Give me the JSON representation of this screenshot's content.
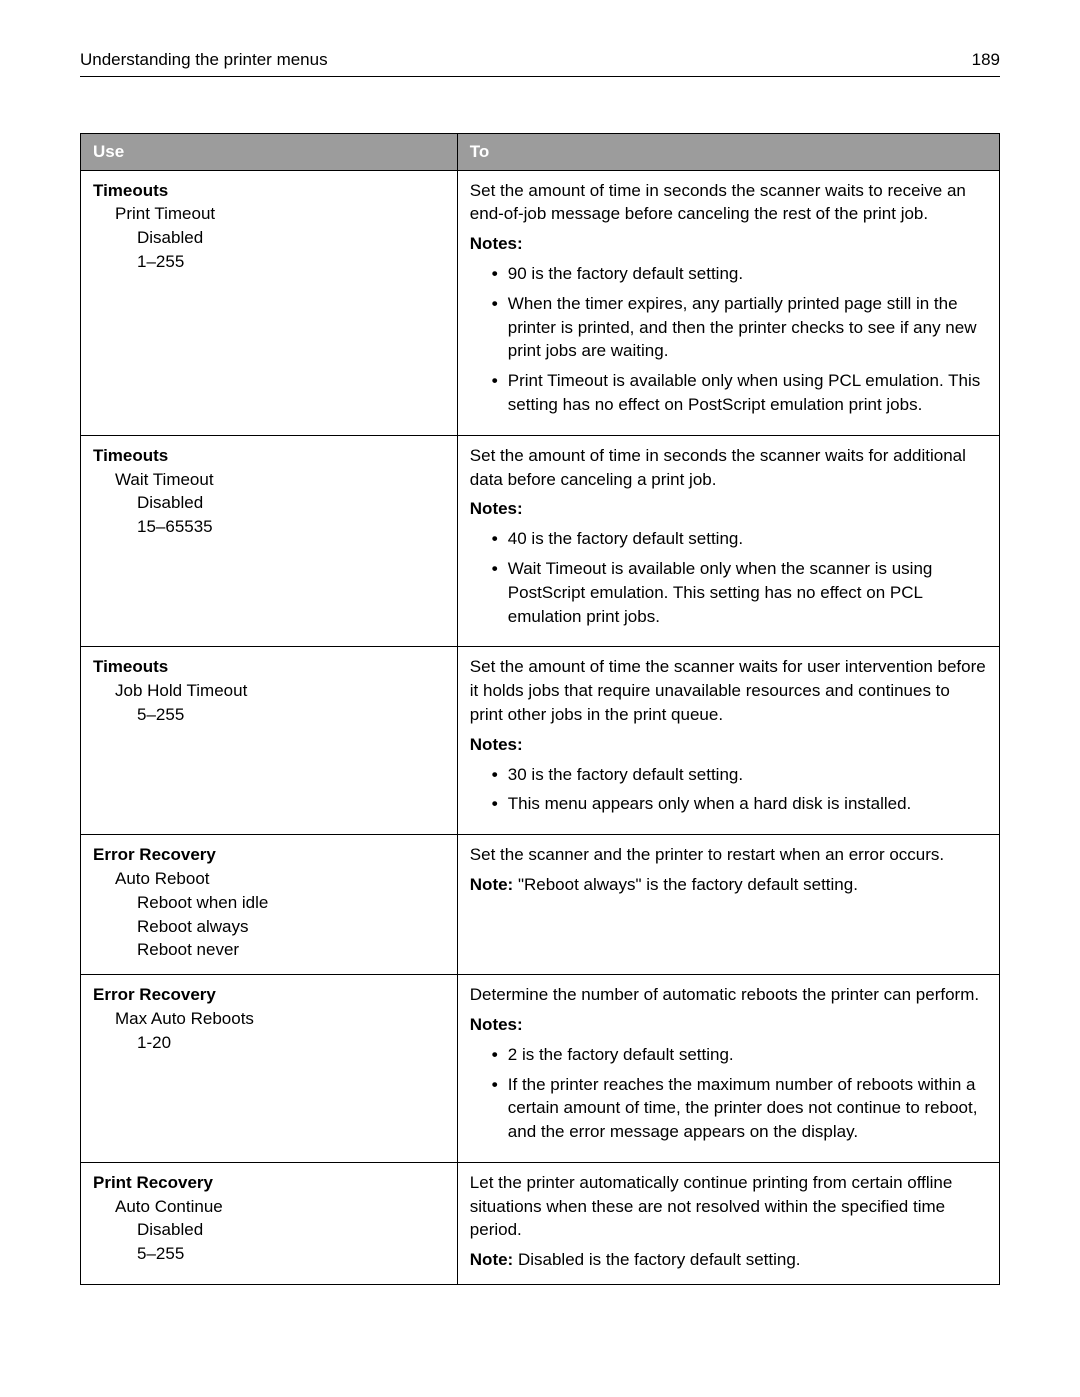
{
  "header": {
    "title": "Understanding the printer menus",
    "page": "189"
  },
  "columns": {
    "use": "Use",
    "to": "To"
  },
  "rows": [
    {
      "use": {
        "l0": "Timeouts",
        "l1": "Print Timeout",
        "l2a": "Disabled",
        "l2b": "1–255"
      },
      "to": {
        "text": "Set the amount of time in seconds the scanner waits to receive an end-of-job message before canceling the rest of the print job.",
        "notes_label": "Notes:",
        "notes": [
          "90 is the factory default setting.",
          "When the timer expires, any partially printed page still in the printer is printed, and then the printer checks to see if any new print jobs are waiting.",
          "Print Timeout is available only when using PCL emulation. This setting has no effect on PostScript emulation print jobs."
        ]
      }
    },
    {
      "use": {
        "l0": "Timeouts",
        "l1": "Wait Timeout",
        "l2a": "Disabled",
        "l2b": "15–65535"
      },
      "to": {
        "text": "Set the amount of time in seconds the scanner waits for additional data before canceling a print job.",
        "notes_label": "Notes:",
        "notes": [
          "40 is the factory default setting.",
          "Wait Timeout is available only when the scanner is using PostScript emulation. This setting has no effect on PCL emulation print jobs."
        ]
      }
    },
    {
      "use": {
        "l0": "Timeouts",
        "l1": "Job Hold Timeout",
        "l2a": "5–255"
      },
      "to": {
        "text": "Set the amount of time the scanner waits for user intervention before it holds jobs that require unavailable resources and continues to print other jobs in the print queue.",
        "notes_label": "Notes:",
        "notes": [
          "30 is the factory default setting.",
          "This menu appears only when a hard disk is installed."
        ]
      }
    },
    {
      "use": {
        "l0": "Error Recovery",
        "l1": "Auto Reboot",
        "l2a": "Reboot when idle",
        "l2b": "Reboot always",
        "l2c": "Reboot never"
      },
      "to": {
        "text": "Set the scanner and the printer to restart when an error occurs.",
        "single_note_label": "Note:",
        "single_note_text": " \"Reboot always\" is the factory default setting."
      }
    },
    {
      "use": {
        "l0": "Error Recovery",
        "l1": "Max Auto Reboots",
        "l2a": "1-20"
      },
      "to": {
        "text": "Determine the number of automatic reboots the printer can perform.",
        "notes_label": "Notes:",
        "notes": [
          "2 is the factory default setting.",
          "If the printer reaches the maximum number of reboots within a certain amount of time, the printer does not continue to reboot, and the error message appears on the display."
        ]
      }
    },
    {
      "use": {
        "l0": "Print Recovery",
        "l1": "Auto Continue",
        "l2a": "Disabled",
        "l2b": "5–255"
      },
      "to": {
        "text": "Let the printer automatically continue printing from certain offline situations when these are not resolved within the specified time period.",
        "single_note_label": "Note:",
        "single_note_text": " Disabled is the factory default setting."
      }
    }
  ]
}
